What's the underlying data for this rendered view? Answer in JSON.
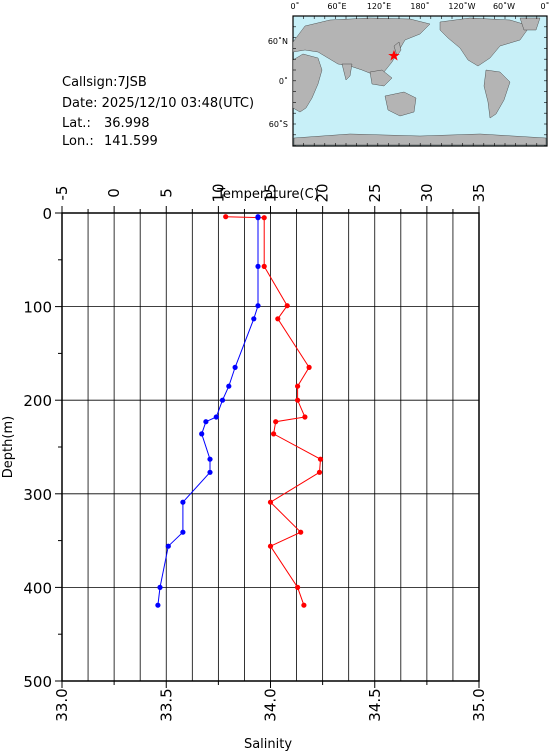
{
  "station": {
    "callsign": "Callsign:7JSB",
    "date": "Date:  2025/12/10 03:48(UTC)",
    "lat_label": "Lat.:",
    "lat_value": "36.998",
    "lon_label": "Lon.:",
    "lon_value": "141.599"
  },
  "map": {
    "top_labels": [
      "0˚",
      "60˚E",
      "120˚E",
      "180˚",
      "120˚W",
      "60˚W",
      "0˚"
    ],
    "side_labels": [
      "60˚N",
      "0˚",
      "60˚S"
    ],
    "ocean_color": "#c8f0f8",
    "land_color": "#b4b4b4",
    "marker": "red-star",
    "marker_color": "#ff0000"
  },
  "chart_data": {
    "type": "line",
    "ylabel": "Depth(m)",
    "xlabel_top": "Temperature(C)",
    "xlabel_bottom": "Salinity",
    "ylim": [
      0,
      500
    ],
    "y_inverted": true,
    "y_ticks": [
      0,
      100,
      200,
      300,
      400,
      500
    ],
    "temperature_lim": [
      -5,
      35
    ],
    "temperature_ticks": [
      -5,
      0,
      5,
      10,
      15,
      20,
      25,
      30,
      35
    ],
    "salinity_lim": [
      33.0,
      35.0
    ],
    "salinity_ticks": [
      "33.0",
      "33.5",
      "34.0",
      "34.5",
      "35.0"
    ],
    "grid": true,
    "series": [
      {
        "axis": "temperature",
        "color": "#ff0000",
        "points": [
          [
            10.7,
            4
          ],
          [
            14.4,
            5
          ],
          [
            14.4,
            57
          ],
          [
            16.6,
            99
          ],
          [
            15.7,
            113
          ],
          [
            18.7,
            165
          ],
          [
            17.6,
            185
          ],
          [
            17.6,
            200
          ],
          [
            18.3,
            218
          ],
          [
            15.5,
            223
          ],
          [
            15.3,
            236
          ],
          [
            19.8,
            263
          ],
          [
            19.7,
            277
          ],
          [
            15.0,
            309
          ],
          [
            17.9,
            341
          ],
          [
            15.0,
            356
          ],
          [
            17.6,
            400
          ],
          [
            18.2,
            419
          ]
        ]
      },
      {
        "axis": "salinity",
        "color": "#0000ff",
        "points": [
          [
            33.94,
            4
          ],
          [
            33.94,
            5
          ],
          [
            33.94,
            57
          ],
          [
            33.94,
            99
          ],
          [
            33.92,
            113
          ],
          [
            33.83,
            165
          ],
          [
            33.8,
            185
          ],
          [
            33.77,
            200
          ],
          [
            33.74,
            218
          ],
          [
            33.69,
            223
          ],
          [
            33.67,
            236
          ],
          [
            33.71,
            263
          ],
          [
            33.71,
            277
          ],
          [
            33.58,
            309
          ],
          [
            33.58,
            341
          ],
          [
            33.51,
            356
          ],
          [
            33.47,
            400
          ],
          [
            33.46,
            419
          ]
        ]
      }
    ]
  }
}
